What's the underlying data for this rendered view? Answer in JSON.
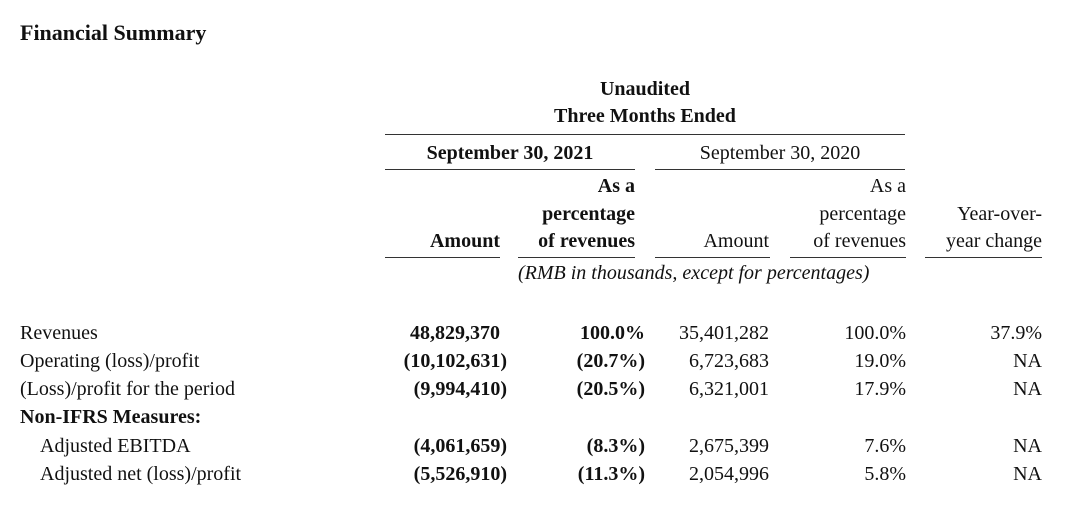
{
  "title": "Financial Summary",
  "header": {
    "audit": "Unaudited",
    "period": "Three Months Ended",
    "date_2021": "September 30, 2021",
    "date_2020": "September 30, 2020",
    "pct_line1": "As a",
    "pct_line2": "percentage",
    "pct_line3": "of revenues",
    "amount": "Amount",
    "yoy_line1": "Year-over-",
    "yoy_line2": "year change",
    "note": "(RMB in thousands, except for percentages)"
  },
  "rows": [
    {
      "label": "Revenues",
      "a2021": "48,829,370",
      "p2021": "100.0%",
      "a2020": "35,401,282",
      "p2020": "100.0%",
      "yoy": "37.9%"
    },
    {
      "label": "Operating (loss)/profit",
      "a2021": "(10,102,631)",
      "p2021": "(20.7%)",
      "a2020": "6,723,683",
      "p2020": "19.0%",
      "yoy": "NA"
    },
    {
      "label": "(Loss)/profit for the period",
      "a2021": "(9,994,410)",
      "p2021": "(20.5%)",
      "a2020": "6,321,001",
      "p2020": "17.9%",
      "yoy": "NA"
    },
    {
      "label": "Non-IFRS Measures:"
    },
    {
      "label": "Adjusted EBITDA",
      "a2021": "(4,061,659)",
      "p2021": "(8.3%)",
      "a2020": "2,675,399",
      "p2020": "7.6%",
      "yoy": "NA"
    },
    {
      "label": "Adjusted net (loss)/profit",
      "a2021": "(5,526,910)",
      "p2021": "(11.3%)",
      "a2020": "2,054,996",
      "p2020": "5.8%",
      "yoy": "NA"
    }
  ]
}
